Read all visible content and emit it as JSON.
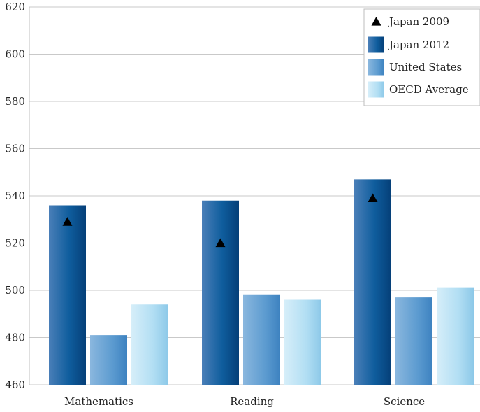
{
  "chart_data": {
    "type": "bar",
    "title": "",
    "xlabel": "",
    "ylabel": "",
    "ylim": [
      460,
      620
    ],
    "yticks": [
      460,
      480,
      500,
      520,
      540,
      560,
      580,
      600,
      620
    ],
    "grid": true,
    "legend_position": "top-right",
    "categories": [
      "Mathematics",
      "Reading",
      "Science"
    ],
    "series": [
      {
        "name": "Japan 2012",
        "values": [
          536,
          538,
          547
        ],
        "color": "#0b5f9f"
      },
      {
        "name": "United States",
        "values": [
          481,
          498,
          497
        ],
        "color": "#5b9bd0"
      },
      {
        "name": "OECD Average",
        "values": [
          494,
          496,
          501
        ],
        "color": "#a9dbf2"
      }
    ],
    "markers": {
      "name": "Japan 2009",
      "symbol": "triangle",
      "values": [
        529,
        520,
        539
      ],
      "color": "#000000"
    },
    "legend": [
      "Japan 2009",
      "Japan 2012",
      "United States",
      "OECD Average"
    ]
  }
}
